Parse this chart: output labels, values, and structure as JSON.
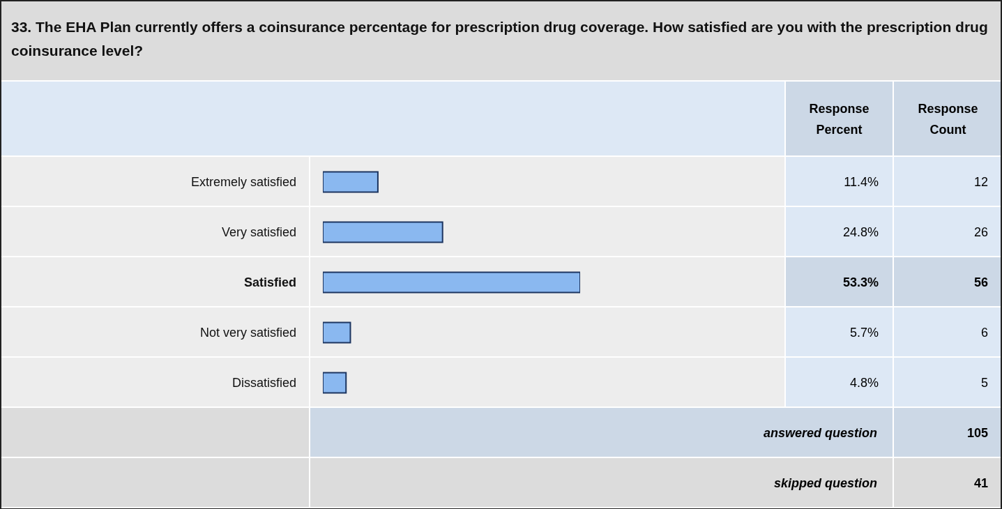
{
  "chart_data": {
    "type": "bar",
    "orientation": "horizontal",
    "title": "33. The EHA Plan currently offers a coinsurance percentage for prescription drug coverage. How satisfied are you with the prescription drug coinsurance level?",
    "categories": [
      "Extremely satisfied",
      "Very satisfied",
      "Satisfied",
      "Not very satisfied",
      "Dissatisfied"
    ],
    "values": [
      11.4,
      24.8,
      53.3,
      5.7,
      4.8
    ],
    "value_labels": [
      "11.4%",
      "24.8%",
      "53.3%",
      "5.7%",
      "4.8%"
    ],
    "color": "#8ab8f0",
    "tick_labels": "y",
    "annotations": [
      "Response Percent",
      "Response Count",
      "12",
      "26",
      "56",
      "6",
      "5",
      "answered question",
      "105",
      "skipped question",
      "41"
    ]
  }
}
